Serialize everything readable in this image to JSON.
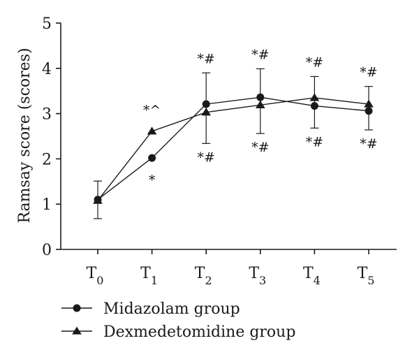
{
  "chart_data": {
    "type": "line",
    "ylabel": "Ramsay score (scores)",
    "xlabel": "",
    "ylim": [
      0,
      5
    ],
    "yticks": [
      0,
      1,
      2,
      3,
      4,
      5
    ],
    "categories": [
      {
        "base": "T",
        "sub": "0"
      },
      {
        "base": "T",
        "sub": "1"
      },
      {
        "base": "T",
        "sub": "2"
      },
      {
        "base": "T",
        "sub": "3"
      },
      {
        "base": "T",
        "sub": "4"
      },
      {
        "base": "T",
        "sub": "5"
      }
    ],
    "grid": false,
    "legend_position": "bottom-left",
    "series": [
      {
        "name": "Midazolam group",
        "marker": "circle",
        "color": "#1a1a1a",
        "values": [
          1.1,
          2.02,
          3.21,
          3.36,
          3.17,
          3.06
        ],
        "error_low": [
          0.68,
          2.02,
          2.34,
          2.56,
          2.68,
          2.64
        ],
        "error_high": [
          1.51,
          2.02,
          3.9,
          3.99,
          3.82,
          3.6
        ],
        "annotations": [
          "",
          "*",
          "*#",
          "*#",
          "*#",
          "*#"
        ],
        "annotation_side": "below"
      },
      {
        "name": "Dexmedetomidine group",
        "marker": "triangle",
        "color": "#1a1a1a",
        "values": [
          1.08,
          2.61,
          3.03,
          3.19,
          3.35,
          3.21
        ],
        "error_low": [
          1.08,
          2.61,
          3.03,
          3.19,
          3.35,
          3.21
        ],
        "error_high": [
          1.08,
          2.61,
          3.03,
          3.19,
          3.35,
          3.21
        ],
        "annotations": [
          "",
          "*^",
          "*#",
          "*#",
          "*#",
          "*#"
        ],
        "annotation_side": "above"
      }
    ]
  }
}
